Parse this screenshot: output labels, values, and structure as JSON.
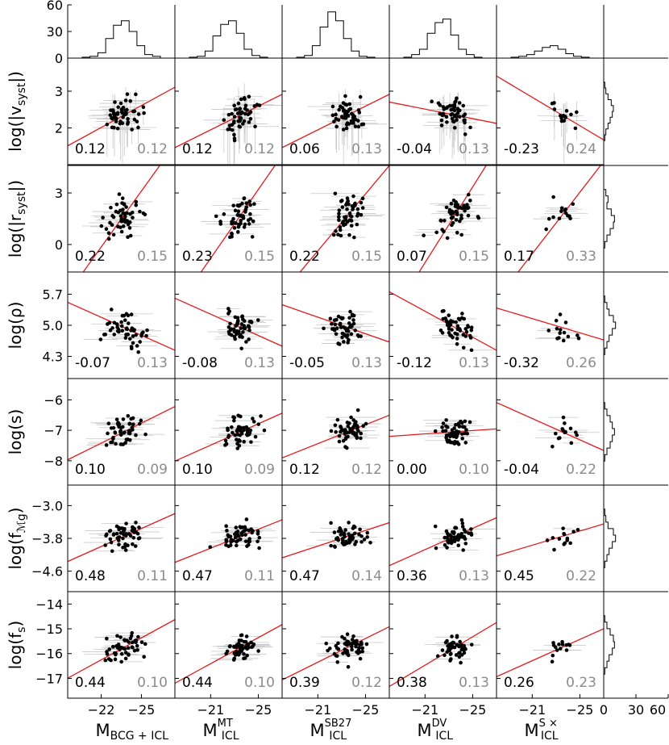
{
  "chart_data": {
    "type": "scatter",
    "layout": "corner-matrix",
    "columns": [
      {
        "label_main": "M",
        "label_sub": "BCG + ICL",
        "label_sup": "",
        "xlim": [
          -19.5,
          -27.5
        ],
        "ticks": [
          -22,
          -25
        ],
        "tick_labels": [
          "−22",
          "−25"
        ]
      },
      {
        "label_main": "M",
        "label_sub": "ICL",
        "label_sup": "MT",
        "xlim": [
          -18.0,
          -27.0
        ],
        "ticks": [
          -21,
          -25
        ],
        "tick_labels": [
          "−21",
          "−25"
        ]
      },
      {
        "label_main": "M",
        "label_sub": "ICL",
        "label_sup": "SB27",
        "xlim": [
          -18.0,
          -27.0
        ],
        "ticks": [
          -21,
          -25
        ],
        "tick_labels": [
          "−21",
          "−25"
        ]
      },
      {
        "label_main": "M",
        "label_sub": "ICL",
        "label_sup": "DV",
        "xlim": [
          -18.0,
          -27.0
        ],
        "ticks": [
          -21,
          -25
        ],
        "tick_labels": [
          "−21",
          "−25"
        ]
      },
      {
        "label_main": "M",
        "label_sub": "ICL",
        "label_sup": "S ×",
        "xlim": [
          -18.0,
          -27.0
        ],
        "ticks": [
          -21,
          -25
        ],
        "tick_labels": [
          "−21",
          "−25"
        ]
      }
    ],
    "rows": [
      {
        "label": "log(|v_syst|)",
        "label_main": "log(|v",
        "label_sub": "syst",
        "label_end": "|)",
        "ylim": [
          1.0,
          3.9
        ],
        "ticks": [
          2,
          3
        ],
        "tick_labels": [
          "2",
          "3"
        ],
        "center": 2.35,
        "spread": 0.32,
        "hist": [
          1,
          2,
          4,
          7,
          9,
          8,
          6,
          4,
          2,
          1
        ]
      },
      {
        "label": "log(|r_syst|)",
        "label_main": "log(|r",
        "label_sub": "syst",
        "label_end": "|)",
        "ylim": [
          -1.6,
          4.6
        ],
        "ticks": [
          0,
          3
        ],
        "tick_labels": [
          "0",
          "3"
        ],
        "center": 1.7,
        "spread": 0.8,
        "hist": [
          2,
          4,
          3,
          7,
          10,
          9,
          6,
          3,
          1
        ]
      },
      {
        "label": "log(ρ)",
        "label_main": "log(ρ)",
        "label_sub": "",
        "label_end": "",
        "ylim": [
          3.8,
          6.2
        ],
        "ticks": [
          4.3,
          5.0,
          5.7
        ],
        "tick_labels": [
          "4.3",
          "5.0",
          "5.7"
        ],
        "center": 4.95,
        "spread": 0.25,
        "hist": [
          1,
          3,
          5,
          9,
          11,
          8,
          5,
          3,
          1
        ]
      },
      {
        "label": "log(s)",
        "label_main": "log(s)",
        "label_sub": "",
        "label_end": "",
        "ylim": [
          -8.8,
          -5.3
        ],
        "ticks": [
          -8,
          -7,
          -6
        ],
        "tick_labels": [
          "−8",
          "−7",
          "−6"
        ],
        "center": -7.05,
        "spread": 0.35,
        "hist": [
          1,
          3,
          6,
          8,
          10,
          8,
          6,
          3,
          1
        ]
      },
      {
        "label": "log(f_Mg)",
        "label_main": "log(f",
        "label_sub": "ℳg",
        "label_end": ")",
        "ylim": [
          -5.1,
          -2.5
        ],
        "ticks": [
          -4.6,
          -3.8,
          -3.0
        ],
        "tick_labels": [
          "−4.6",
          "−3.8",
          "−3.0"
        ],
        "center": -3.75,
        "spread": 0.22,
        "hist": [
          1,
          2,
          4,
          9,
          11,
          8,
          5,
          3,
          1
        ]
      },
      {
        "label": "log(f_s)",
        "label_main": "log(f",
        "label_sub": "s",
        "label_end": ")",
        "ylim": [
          -17.8,
          -13.5
        ],
        "ticks": [
          -17,
          -16,
          -15,
          -14
        ],
        "tick_labels": [
          "−17",
          "−16",
          "−15",
          "−14"
        ],
        "center": -15.75,
        "spread": 0.35,
        "hist": [
          1,
          3,
          6,
          9,
          10,
          8,
          5,
          3,
          1
        ]
      }
    ],
    "top_histograms": {
      "ylim": [
        0,
        60
      ],
      "ticks": [
        0,
        30,
        60
      ],
      "tick_labels": [
        "0",
        "30",
        "60"
      ],
      "counts": [
        [
          1,
          2,
          6,
          22,
          37,
          42,
          30,
          14,
          4,
          2
        ],
        [
          1,
          2,
          8,
          25,
          38,
          42,
          28,
          10,
          3,
          1
        ],
        [
          1,
          3,
          14,
          35,
          52,
          42,
          22,
          8,
          2,
          1
        ],
        [
          1,
          4,
          10,
          28,
          40,
          44,
          26,
          10,
          4,
          1
        ],
        [
          1,
          2,
          4,
          8,
          12,
          14,
          10,
          5,
          2,
          1
        ]
      ]
    },
    "side_histograms": {
      "xlim": [
        0,
        60
      ],
      "ticks": [
        0,
        30,
        60
      ],
      "tick_labels": [
        "0",
        "30",
        "60"
      ]
    },
    "panels": [
      [
        {
          "r": "0.12",
          "err": "0.12",
          "slope": -0.55
        },
        {
          "r": "0.12",
          "err": "0.12",
          "slope": -0.5
        },
        {
          "r": "0.06",
          "err": "0.13",
          "slope": -0.5
        },
        {
          "r": "-0.04",
          "err": "0.13",
          "slope": 0.2
        },
        {
          "r": "-0.23",
          "err": "0.24",
          "slope": 0.6
        }
      ],
      [
        {
          "r": "0.22",
          "err": "0.15",
          "slope": -1.4
        },
        {
          "r": "0.23",
          "err": "0.15",
          "slope": -1.45
        },
        {
          "r": "0.22",
          "err": "0.15",
          "slope": -1.2
        },
        {
          "r": "0.07",
          "err": "0.15",
          "slope": -1.6
        },
        {
          "r": "0.17",
          "err": "0.33",
          "slope": -1.3
        }
      ],
      [
        {
          "r": "-0.07",
          "err": "0.13",
          "slope": 0.45
        },
        {
          "r": "-0.08",
          "err": "0.13",
          "slope": 0.45
        },
        {
          "r": "-0.05",
          "err": "0.13",
          "slope": 0.35
        },
        {
          "r": "-0.12",
          "err": "0.13",
          "slope": 0.55
        },
        {
          "r": "-0.32",
          "err": "0.26",
          "slope": 0.3
        }
      ],
      [
        {
          "r": "0.10",
          "err": "0.09",
          "slope": -0.5
        },
        {
          "r": "0.10",
          "err": "0.09",
          "slope": -0.45
        },
        {
          "r": "0.12",
          "err": "0.12",
          "slope": -0.4
        },
        {
          "r": "0.00",
          "err": "0.10",
          "slope": -0.07
        },
        {
          "r": "-0.04",
          "err": "0.22",
          "slope": 0.45
        }
      ],
      [
        {
          "r": "0.48",
          "err": "0.11",
          "slope": -0.45
        },
        {
          "r": "0.47",
          "err": "0.11",
          "slope": -0.4
        },
        {
          "r": "0.47",
          "err": "0.14",
          "slope": -0.33
        },
        {
          "r": "0.36",
          "err": "0.13",
          "slope": -0.45
        },
        {
          "r": "0.45",
          "err": "0.22",
          "slope": -0.3
        }
      ],
      [
        {
          "r": "0.44",
          "err": "0.10",
          "slope": -0.55
        },
        {
          "r": "0.44",
          "err": "0.10",
          "slope": -0.55
        },
        {
          "r": "0.39",
          "err": "0.12",
          "slope": -0.5
        },
        {
          "r": "0.38",
          "err": "0.13",
          "slope": -0.6
        },
        {
          "r": "0.26",
          "err": "0.23",
          "slope": -0.45
        }
      ]
    ],
    "colors": {
      "points": "#000000",
      "fit": "#e41a1c",
      "errorbars": "#c8c8c8",
      "r_text": "#000000",
      "err_text": "#8c8c8c",
      "axes": "#000000"
    }
  }
}
